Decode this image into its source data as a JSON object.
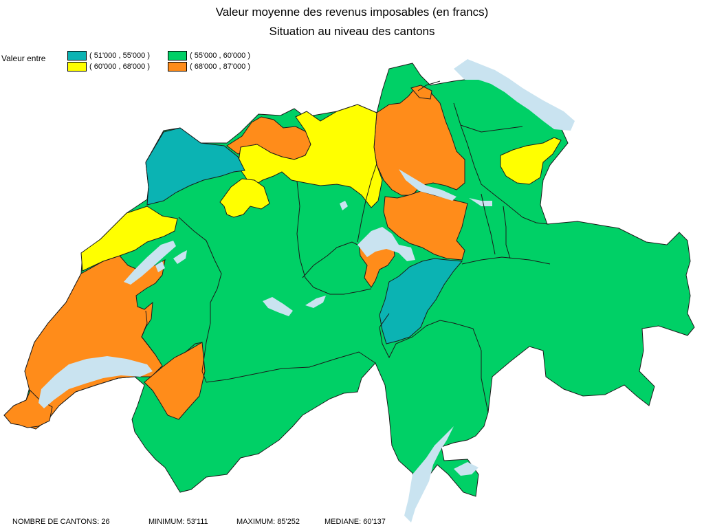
{
  "title": {
    "line1": "Valeur moyenne des revenus imposables (en francs)",
    "line2": "Situation au niveau des cantons"
  },
  "legend": {
    "label": "Valeur entre",
    "classes": [
      {
        "range": "( 51'000 , 55'000 )",
        "color": "#0bb3b3"
      },
      {
        "range": "( 55'000 , 60'000 )",
        "color": "#00d066"
      },
      {
        "range": "( 60'000 , 68'000 )",
        "color": "#ffff00"
      },
      {
        "range": "( 68'000 , 87'000 )",
        "color": "#ff8c1a"
      }
    ]
  },
  "colors": {
    "lake": "#c9e3f0",
    "border": "#1a1a1a"
  },
  "stats": {
    "count": "NOMBRE DE CANTONS: 26",
    "minimum": "MINIMUM: 53'111",
    "maximum": "MAXIMUM: 85'252",
    "median": "MEDIANE: 60'137"
  }
}
